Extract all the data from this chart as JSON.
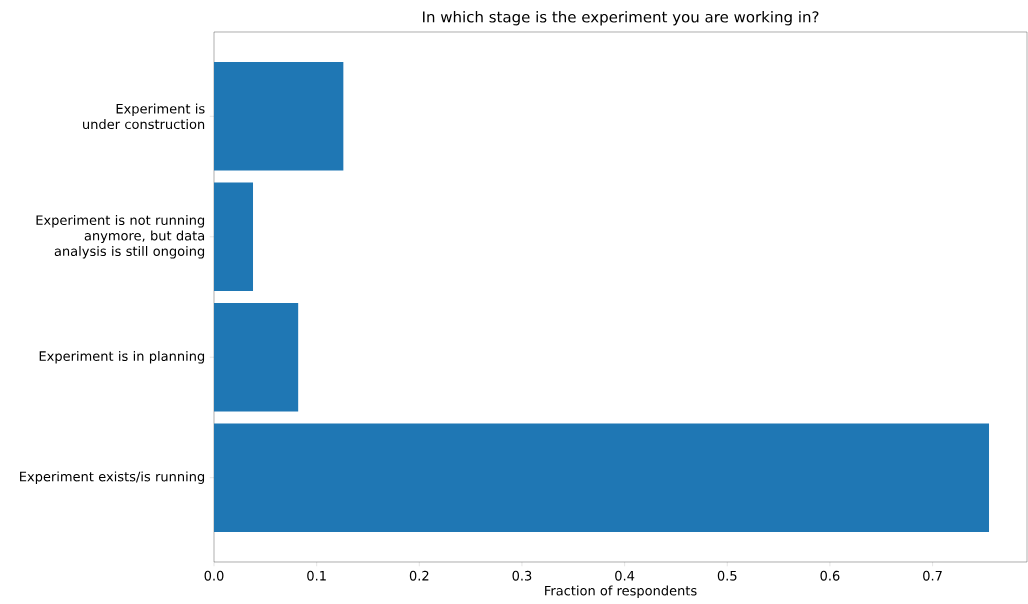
{
  "chart_data": {
    "type": "bar",
    "orientation": "horizontal",
    "title": "In which stage is the experiment you are working in?",
    "xlabel": "Fraction of respondents",
    "categories": [
      "Experiment is under construction",
      "Experiment is not running anymore, but data analysis is still ongoing",
      "Experiment is in planning",
      "Experiment exists/is running"
    ],
    "values": [
      0.126,
      0.038,
      0.082,
      0.755
    ],
    "color": "#1f77b4",
    "xlim": [
      0,
      0.792
    ],
    "xticks": [
      {
        "value": 0,
        "label": "0.0"
      },
      0.1,
      0.2,
      0.3,
      0.4,
      0.5,
      0.6,
      0.7
    ],
    "grid": false
  }
}
